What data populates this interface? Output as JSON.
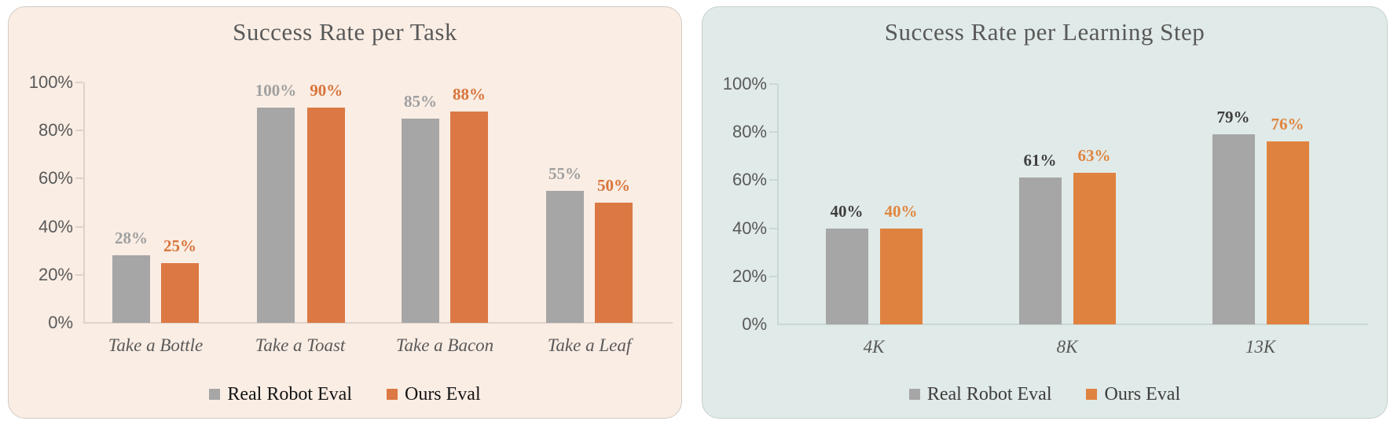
{
  "page": {
    "background": "#FFFFFF"
  },
  "chart_data": [
    {
      "type": "bar",
      "title": "Success Rate per Task",
      "categories": [
        "Take a Bottle",
        "Take a Toast",
        "Take a Bacon",
        "Take a Leaf"
      ],
      "series": [
        {
          "name": "Real Robot Eval",
          "values": [
            28,
            100,
            85,
            55
          ],
          "labels": [
            "28%",
            "100%",
            "85%",
            "55%"
          ]
        },
        {
          "name": "Ours Eval",
          "values": [
            25,
            90,
            88,
            50
          ],
          "labels": [
            "25%",
            "90%",
            "88%",
            "50%"
          ]
        }
      ],
      "xlabel": "",
      "ylabel": "",
      "ylim": [
        0,
        100
      ],
      "y_ticks": [
        0,
        20,
        40,
        60,
        80,
        100
      ],
      "y_tick_labels": [
        "0%",
        "20%",
        "40%",
        "60%",
        "80%",
        "100%"
      ],
      "grid": false,
      "legend_position": "bottom"
    },
    {
      "type": "bar",
      "title": "Success Rate per Learning Step",
      "categories": [
        "4K",
        "8K",
        "13K"
      ],
      "series": [
        {
          "name": "Real Robot Eval",
          "values": [
            40,
            61,
            79
          ],
          "labels": [
            "40%",
            "61%",
            "79%"
          ]
        },
        {
          "name": "Ours Eval",
          "values": [
            40,
            63,
            76
          ],
          "labels": [
            "40%",
            "63%",
            "76%"
          ]
        }
      ],
      "xlabel": "",
      "ylabel": "",
      "ylim": [
        0,
        100
      ],
      "y_ticks": [
        0,
        20,
        40,
        60,
        80,
        100
      ],
      "y_tick_labels": [
        "0%",
        "20%",
        "40%",
        "60%",
        "80%",
        "100%"
      ],
      "grid": false,
      "legend_position": "bottom"
    }
  ],
  "style": {
    "title_color": "#595959",
    "axis_text_color": "#595959",
    "category_text_color": "#595959",
    "panels": [
      {
        "background": "#FAEDE4",
        "border": "#D2CBC4",
        "axis_line": "#DCD3CA",
        "series_colors": [
          "#A6A6A6",
          "#DC7843"
        ],
        "value_label_colors": [
          "#9FA0A0",
          "#D8753B"
        ],
        "legend_text_color": "#141414"
      },
      {
        "background": "#E0EAE8",
        "border": "#C5D1CF",
        "axis_line": "#CBD7D5",
        "series_colors": [
          "#A6A6A6",
          "#E0823F"
        ],
        "value_label_colors": [
          "#3E3E3E",
          "#E08540"
        ],
        "legend_text_color": "#3D3D3D"
      }
    ]
  }
}
